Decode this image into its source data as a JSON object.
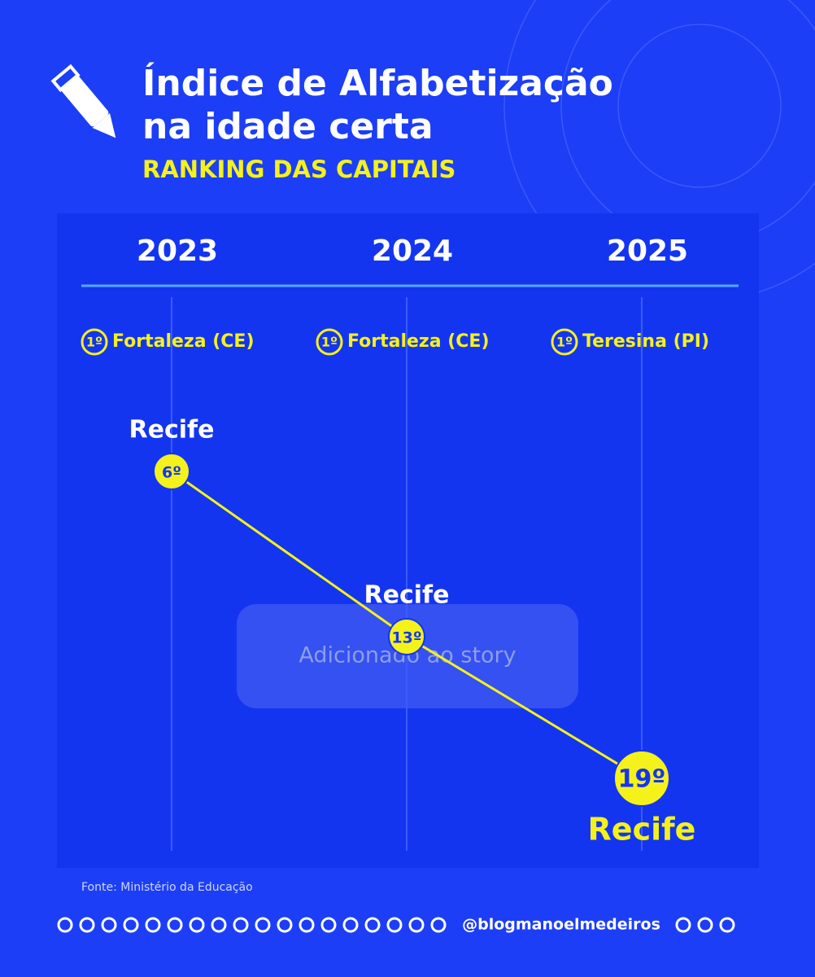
{
  "chart_data": {
    "type": "line",
    "title_lines": [
      "Índice de Alfabetização",
      "na idade certa"
    ],
    "subtitle": "RANKING DAS CAPITAIS",
    "categories": [
      "2023",
      "2024",
      "2025"
    ],
    "leaders": [
      {
        "rank": "1º",
        "name": "Fortaleza (CE)"
      },
      {
        "rank": "1º",
        "name": "Fortaleza (CE)"
      },
      {
        "rank": "1º",
        "name": "Teresina (PI)"
      }
    ],
    "series": [
      {
        "name": "Recife",
        "color": "#f4f21a",
        "values": [
          6,
          13,
          19
        ],
        "value_labels": [
          "6º",
          "13º",
          "19º"
        ]
      }
    ],
    "source": "Fonte: Ministério da Educação",
    "handle": "@blogmanoelmedeiros",
    "overlay": "Adicionado ao story"
  }
}
